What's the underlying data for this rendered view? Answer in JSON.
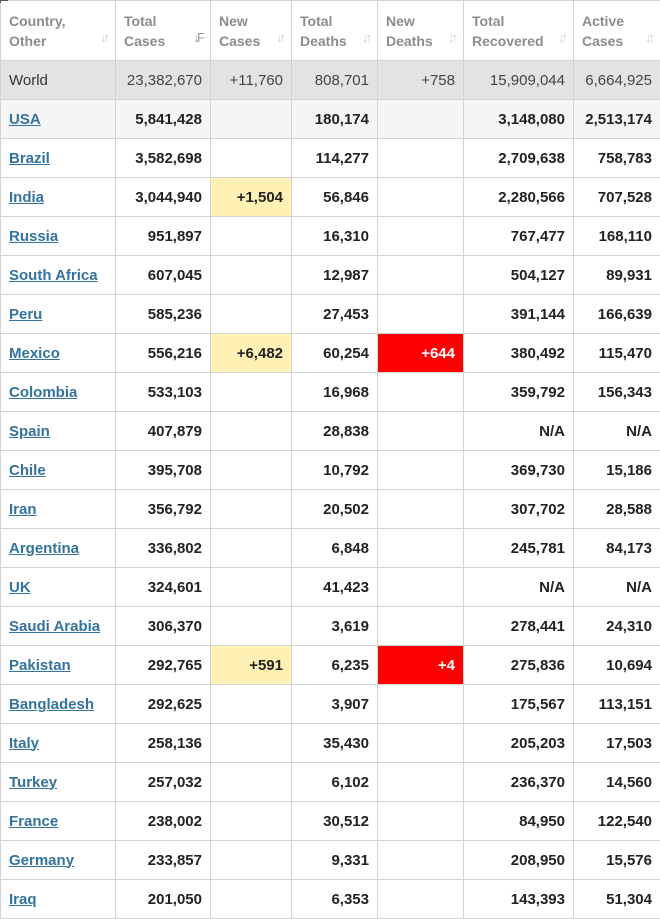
{
  "columns": [
    {
      "line1": "Country,",
      "line2": "Other",
      "sort_icon": "sort-icon"
    },
    {
      "line1": "Total",
      "line2": "Cases",
      "sort_icon": "sort-desc-icon"
    },
    {
      "line1": "New",
      "line2": "Cases",
      "sort_icon": "sort-icon"
    },
    {
      "line1": "Total",
      "line2": "Deaths",
      "sort_icon": "sort-icon"
    },
    {
      "line1": "New",
      "line2": "Deaths",
      "sort_icon": "sort-icon"
    },
    {
      "line1": "Total",
      "line2": "Recovered",
      "sort_icon": "sort-icon"
    },
    {
      "line1": "Active",
      "line2": "Cases",
      "sort_icon": "sort-icon"
    }
  ],
  "world": {
    "name": "World",
    "total_cases": "23,382,670",
    "new_cases": "+11,760",
    "total_deaths": "808,701",
    "new_deaths": "+758",
    "total_recovered": "15,909,044",
    "active_cases": "6,664,925"
  },
  "rows": [
    {
      "name": "USA",
      "total_cases": "5,841,428",
      "new_cases": "",
      "total_deaths": "180,174",
      "new_deaths": "",
      "total_recovered": "3,148,080",
      "active_cases": "2,513,174"
    },
    {
      "name": "Brazil",
      "total_cases": "3,582,698",
      "new_cases": "",
      "total_deaths": "114,277",
      "new_deaths": "",
      "total_recovered": "2,709,638",
      "active_cases": "758,783"
    },
    {
      "name": "India",
      "total_cases": "3,044,940",
      "new_cases": "+1,504",
      "total_deaths": "56,846",
      "new_deaths": "",
      "total_recovered": "2,280,566",
      "active_cases": "707,528"
    },
    {
      "name": "Russia",
      "total_cases": "951,897",
      "new_cases": "",
      "total_deaths": "16,310",
      "new_deaths": "",
      "total_recovered": "767,477",
      "active_cases": "168,110"
    },
    {
      "name": "South Africa",
      "total_cases": "607,045",
      "new_cases": "",
      "total_deaths": "12,987",
      "new_deaths": "",
      "total_recovered": "504,127",
      "active_cases": "89,931"
    },
    {
      "name": "Peru",
      "total_cases": "585,236",
      "new_cases": "",
      "total_deaths": "27,453",
      "new_deaths": "",
      "total_recovered": "391,144",
      "active_cases": "166,639"
    },
    {
      "name": "Mexico",
      "total_cases": "556,216",
      "new_cases": "+6,482",
      "total_deaths": "60,254",
      "new_deaths": "+644",
      "total_recovered": "380,492",
      "active_cases": "115,470"
    },
    {
      "name": "Colombia",
      "total_cases": "533,103",
      "new_cases": "",
      "total_deaths": "16,968",
      "new_deaths": "",
      "total_recovered": "359,792",
      "active_cases": "156,343"
    },
    {
      "name": "Spain",
      "total_cases": "407,879",
      "new_cases": "",
      "total_deaths": "28,838",
      "new_deaths": "",
      "total_recovered": "N/A",
      "active_cases": "N/A"
    },
    {
      "name": "Chile",
      "total_cases": "395,708",
      "new_cases": "",
      "total_deaths": "10,792",
      "new_deaths": "",
      "total_recovered": "369,730",
      "active_cases": "15,186"
    },
    {
      "name": "Iran",
      "total_cases": "356,792",
      "new_cases": "",
      "total_deaths": "20,502",
      "new_deaths": "",
      "total_recovered": "307,702",
      "active_cases": "28,588"
    },
    {
      "name": "Argentina",
      "total_cases": "336,802",
      "new_cases": "",
      "total_deaths": "6,848",
      "new_deaths": "",
      "total_recovered": "245,781",
      "active_cases": "84,173"
    },
    {
      "name": "UK",
      "total_cases": "324,601",
      "new_cases": "",
      "total_deaths": "41,423",
      "new_deaths": "",
      "total_recovered": "N/A",
      "active_cases": "N/A"
    },
    {
      "name": "Saudi Arabia",
      "total_cases": "306,370",
      "new_cases": "",
      "total_deaths": "3,619",
      "new_deaths": "",
      "total_recovered": "278,441",
      "active_cases": "24,310"
    },
    {
      "name": "Pakistan",
      "total_cases": "292,765",
      "new_cases": "+591",
      "total_deaths": "6,235",
      "new_deaths": "+4",
      "total_recovered": "275,836",
      "active_cases": "10,694"
    },
    {
      "name": "Bangladesh",
      "total_cases": "292,625",
      "new_cases": "",
      "total_deaths": "3,907",
      "new_deaths": "",
      "total_recovered": "175,567",
      "active_cases": "113,151"
    },
    {
      "name": "Italy",
      "total_cases": "258,136",
      "new_cases": "",
      "total_deaths": "35,430",
      "new_deaths": "",
      "total_recovered": "205,203",
      "active_cases": "17,503"
    },
    {
      "name": "Turkey",
      "total_cases": "257,032",
      "new_cases": "",
      "total_deaths": "6,102",
      "new_deaths": "",
      "total_recovered": "236,370",
      "active_cases": "14,560"
    },
    {
      "name": "France",
      "total_cases": "238,002",
      "new_cases": "",
      "total_deaths": "30,512",
      "new_deaths": "",
      "total_recovered": "84,950",
      "active_cases": "122,540"
    },
    {
      "name": "Germany",
      "total_cases": "233,857",
      "new_cases": "",
      "total_deaths": "9,331",
      "new_deaths": "",
      "total_recovered": "208,950",
      "active_cases": "15,576"
    },
    {
      "name": "Iraq",
      "total_cases": "201,050",
      "new_cases": "",
      "total_deaths": "6,353",
      "new_deaths": "",
      "total_recovered": "143,393",
      "active_cases": "51,304"
    }
  ],
  "colors": {
    "new_cases_highlight": "#fff0b3",
    "new_deaths_highlight": "#ff0000",
    "link": "#33739f"
  }
}
